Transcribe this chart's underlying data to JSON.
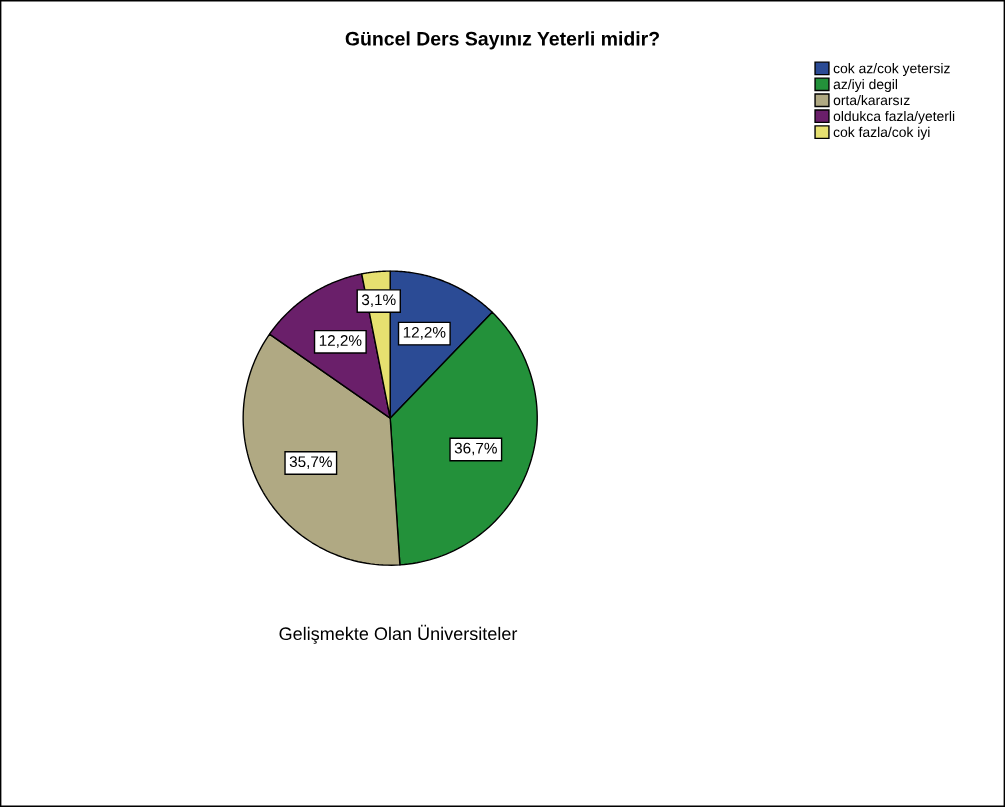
{
  "chart_data": {
    "type": "pie",
    "title": "Güncel Ders Sayınız Yeterli midir?",
    "categories": [
      "cok az/cok yetersiz",
      "az/iyi degil",
      "orta/kararsız",
      "oldukca fazla/yeterli",
      "cok fazla/cok iyi"
    ],
    "values": [
      12.2,
      36.7,
      35.7,
      12.2,
      3.1
    ],
    "colors": [
      "#2b4b95",
      "#23913a",
      "#b0a983",
      "#6a1f6a",
      "#e6e070"
    ],
    "value_labels": [
      "12,2%",
      "36,7%",
      "35,7%",
      "12,2%",
      "3,1%"
    ],
    "annotations": [
      "Gelişmekte Olan Üniversiteler"
    ],
    "legend": "top right"
  }
}
